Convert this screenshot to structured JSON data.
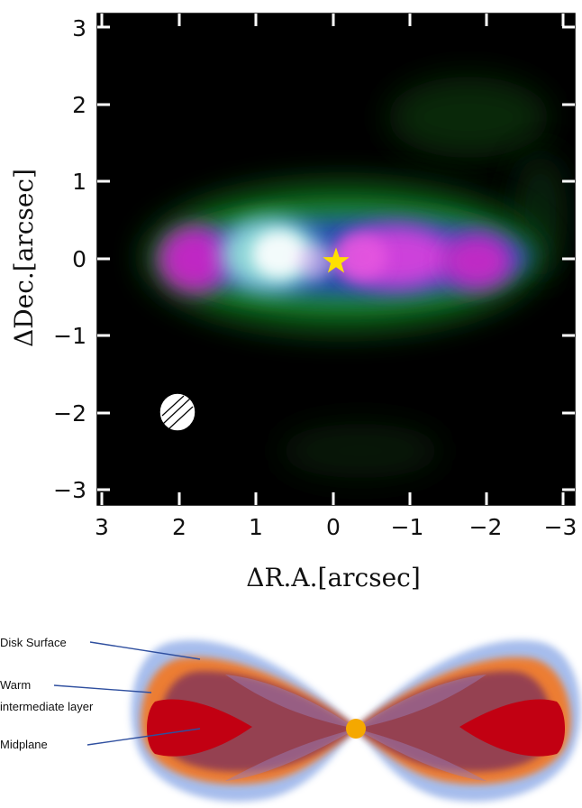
{
  "plot": {
    "x_ticks": [
      "3",
      "2",
      "1",
      "0",
      "−1",
      "−2",
      "−3"
    ],
    "y_ticks": [
      "3",
      "2",
      "1",
      "0",
      "−1",
      "−2",
      "−3"
    ],
    "xlabel": "ΔR.A.[arcsec]",
    "ylabel": "ΔDec.[arcsec]",
    "star_color": "#ffe000"
  },
  "diagram": {
    "labels": [
      "Disk Surface",
      "Warm intermediate layer",
      "Midplane"
    ],
    "label_lines": [
      [
        "Disk Surface"
      ],
      [
        "Warm",
        "intermediate layer"
      ],
      [
        "Midplane"
      ]
    ],
    "colors": {
      "surface": "#8fb0e8",
      "intermediate": "#f08030",
      "midplane": "#c00010",
      "star": "#f5a800"
    }
  }
}
